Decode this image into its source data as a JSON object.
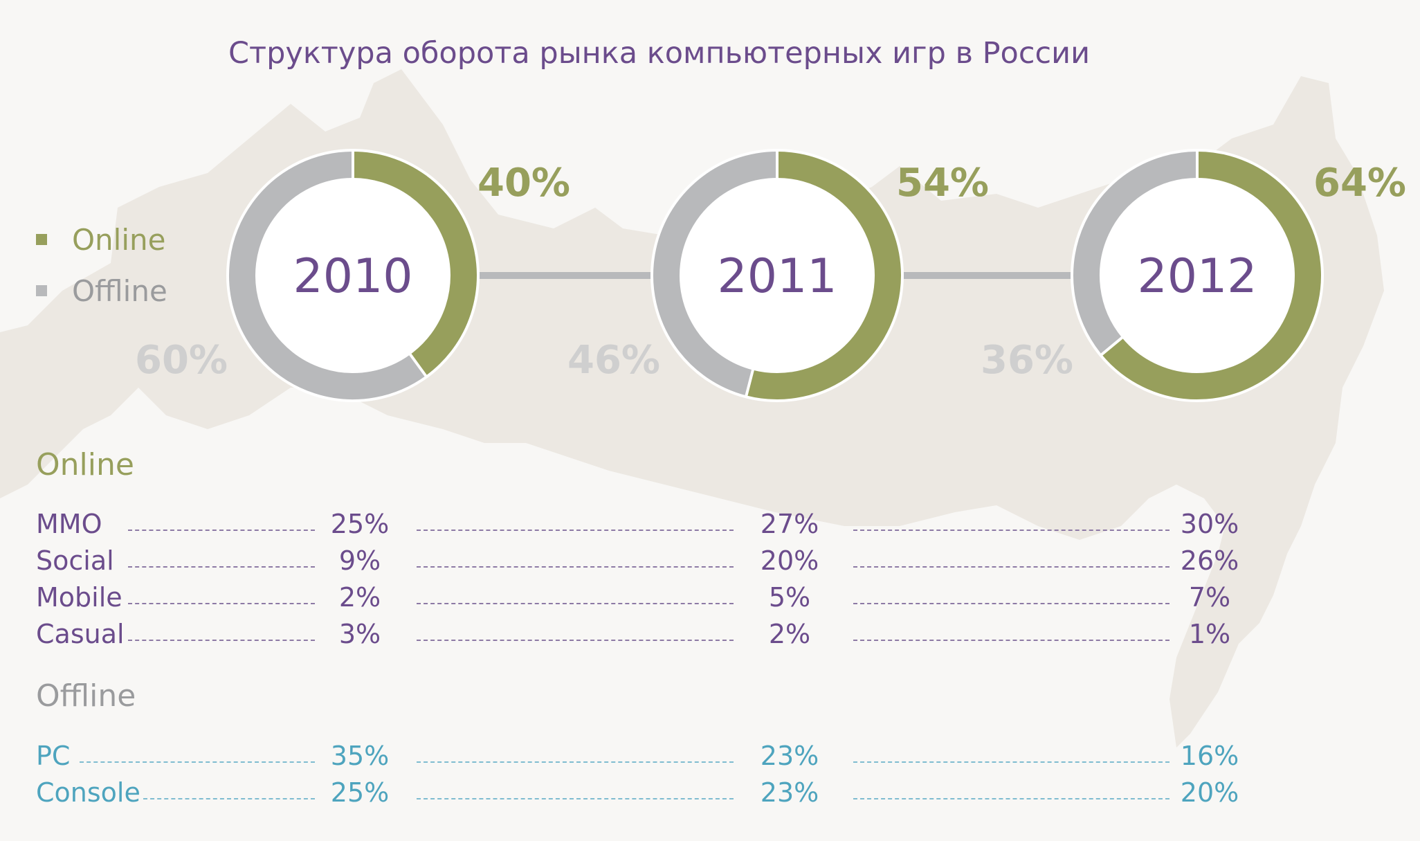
{
  "title": "Структура оборота рынка компьютерных игр в России",
  "colors": {
    "online": "#979f5c",
    "offline": "#b8b9bb",
    "purple": "#6b4c8c",
    "offline_text": "#9a9b9d",
    "teal": "#4ea4be",
    "map": "#ece8e2"
  },
  "legend": [
    {
      "name": "Online",
      "color": "#979f5c"
    },
    {
      "name": "Offline",
      "color": "#b8b9bb"
    }
  ],
  "chart_data": {
    "type": "pie",
    "years": [
      "2010",
      "2011",
      "2012"
    ],
    "series": [
      {
        "name": "Online",
        "values": [
          40,
          54,
          64
        ],
        "labels": [
          "40%",
          "54%",
          "64%"
        ]
      },
      {
        "name": "Offline",
        "values": [
          60,
          46,
          36
        ],
        "labels": [
          "60%",
          "46%",
          "36%"
        ]
      }
    ]
  },
  "breakdown": {
    "online": {
      "title": "Online",
      "rows": [
        {
          "label": "MMO",
          "values": [
            "25%",
            "27%",
            "30%"
          ]
        },
        {
          "label": "Social",
          "values": [
            "9%",
            "20%",
            "26%"
          ]
        },
        {
          "label": "Mobile",
          "values": [
            "2%",
            "5%",
            "7%"
          ]
        },
        {
          "label": "Casual",
          "values": [
            "3%",
            "2%",
            "1%"
          ]
        }
      ]
    },
    "offline": {
      "title": "Offline",
      "rows": [
        {
          "label": "PC",
          "values": [
            "35%",
            "23%",
            "16%"
          ]
        },
        {
          "label": "Console",
          "values": [
            "25%",
            "23%",
            "20%"
          ]
        }
      ]
    }
  }
}
